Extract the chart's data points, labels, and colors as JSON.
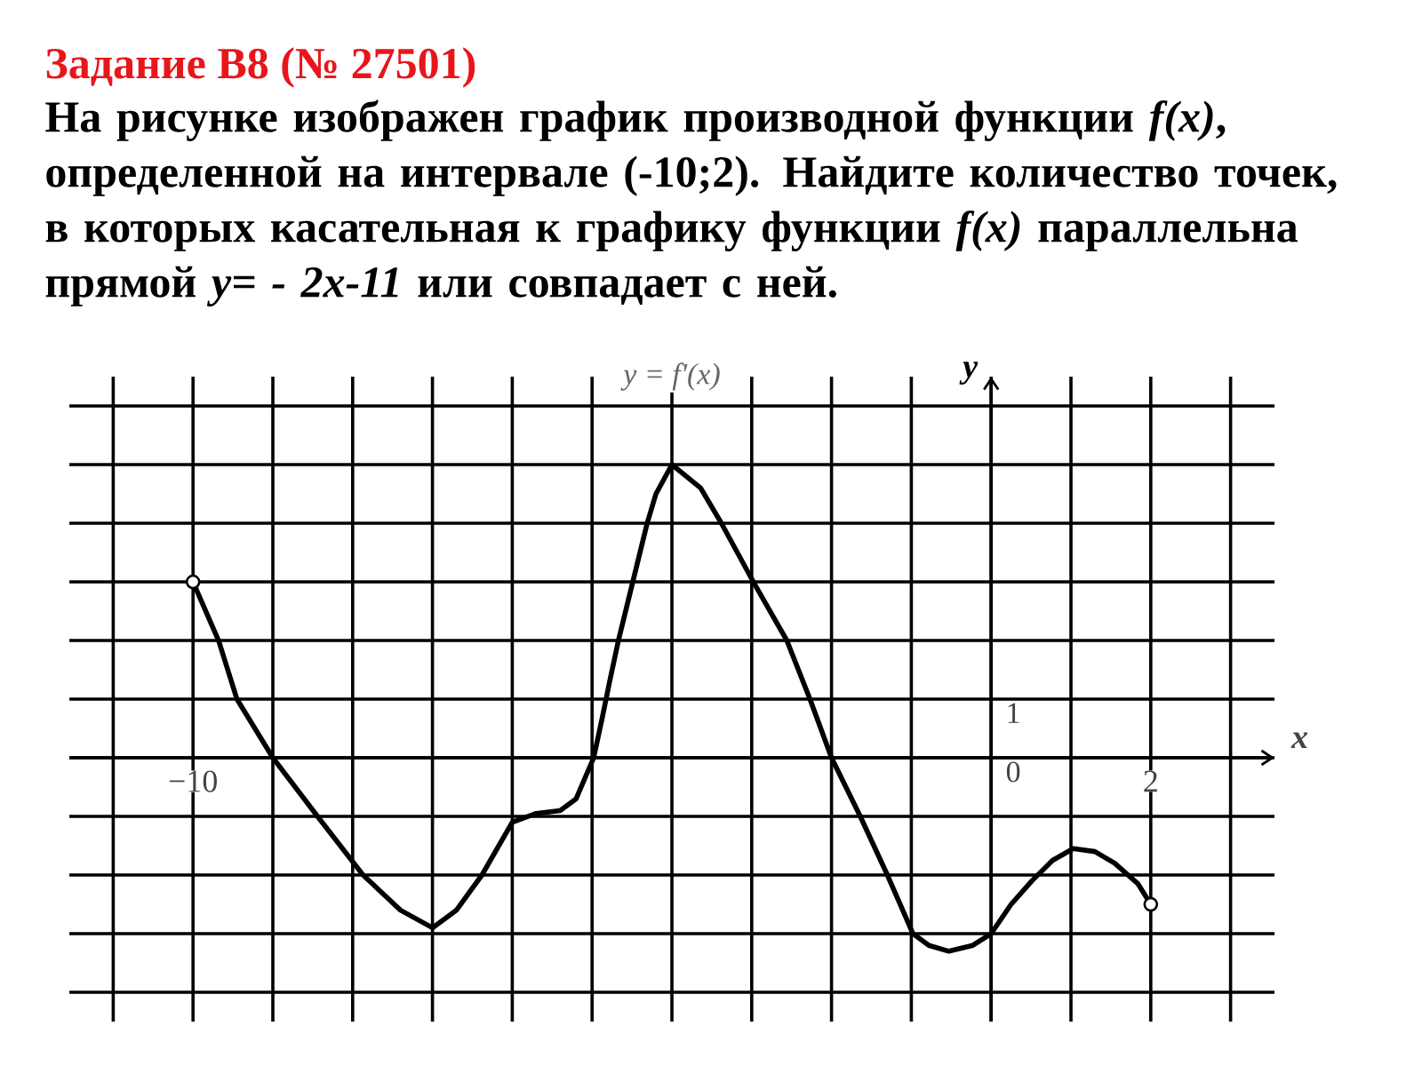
{
  "chart_data": {
    "type": "line",
    "title": "Задание B8 (№ 27501)",
    "subtitle": "На рисунке изображен график производной функции *f(x)*, определенной на интервале (-10;2). Найдите количество точек, в которых касательная к графику функции *f(x)* параллельна прямой *y= - 2x-11* или совпадает с ней.",
    "xlabel": "x",
    "ylabel": "y",
    "series": [
      {
        "name": "y = f'(x)",
        "color": "#000000",
        "x": [
          -10,
          -9.68,
          -9.45,
          -9,
          -8.44,
          -7.87,
          -7.4,
          -7,
          -6.7,
          -6.38,
          -6,
          -5.7,
          -5.4,
          -5.2,
          -4.98,
          -4.87,
          -4.78,
          -4.67,
          -4.49,
          -4.31,
          -4.2,
          -4,
          -3.64,
          -3.38,
          -2.98,
          -2.56,
          -2.27,
          -2,
          -1.64,
          -1.3,
          -0.98,
          -0.78,
          -0.53,
          -0.23,
          0,
          0.25,
          0.51,
          0.77,
          1.03,
          1.3,
          1.55,
          1.84,
          2
        ],
        "values": [
          3,
          2,
          1,
          0,
          -1,
          -2,
          -2.6,
          -2.9,
          -2.6,
          -2,
          -1.1,
          -0.95,
          -0.9,
          -0.7,
          0,
          0.7,
          1.3,
          2,
          3,
          4,
          4.5,
          5,
          4.6,
          4,
          3,
          2,
          1,
          0,
          -1,
          -2,
          -3,
          -3.2,
          -3.3,
          -3.2,
          -3,
          -2.5,
          -2.1,
          -1.75,
          -1.55,
          -1.6,
          -1.8,
          -2.15,
          -2.5
        ]
      },
      {
        "type": "scatter",
        "color": "#000000",
        "marker": "circle",
        "x": [
          -10,
          2
        ],
        "values": [
          3,
          -2.5
        ]
      }
    ],
    "xlim": [
      -11.55,
      3.55
    ],
    "ylim": [
      -4.5,
      6.5
    ],
    "xticks": [
      {
        "value": -11,
        "label": null
      },
      {
        "value": -10,
        "label": "−10"
      },
      {
        "value": -9,
        "label": null
      },
      {
        "value": -8,
        "label": null
      },
      {
        "value": -7,
        "label": null
      },
      {
        "value": -6,
        "label": null
      },
      {
        "value": -5,
        "label": null
      },
      {
        "value": -4,
        "label": null
      },
      {
        "value": -3,
        "label": null
      },
      {
        "value": -2,
        "label": null
      },
      {
        "value": -1,
        "label": null
      },
      {
        "value": 0,
        "label": null
      },
      {
        "value": 1,
        "label": null
      },
      2,
      {
        "value": 3,
        "label": null
      }
    ],
    "yticks": [
      {
        "value": -4,
        "label": null
      },
      {
        "value": -3,
        "label": null
      },
      {
        "value": -2,
        "label": null
      },
      {
        "value": -1,
        "label": null
      },
      0,
      1,
      {
        "value": 2,
        "label": null
      },
      {
        "value": 3,
        "label": null
      },
      {
        "value": 4,
        "label": null
      },
      {
        "value": 5,
        "label": null
      },
      {
        "value": 6,
        "label": null
      }
    ],
    "grid": true,
    "line_style": "solid"
  }
}
